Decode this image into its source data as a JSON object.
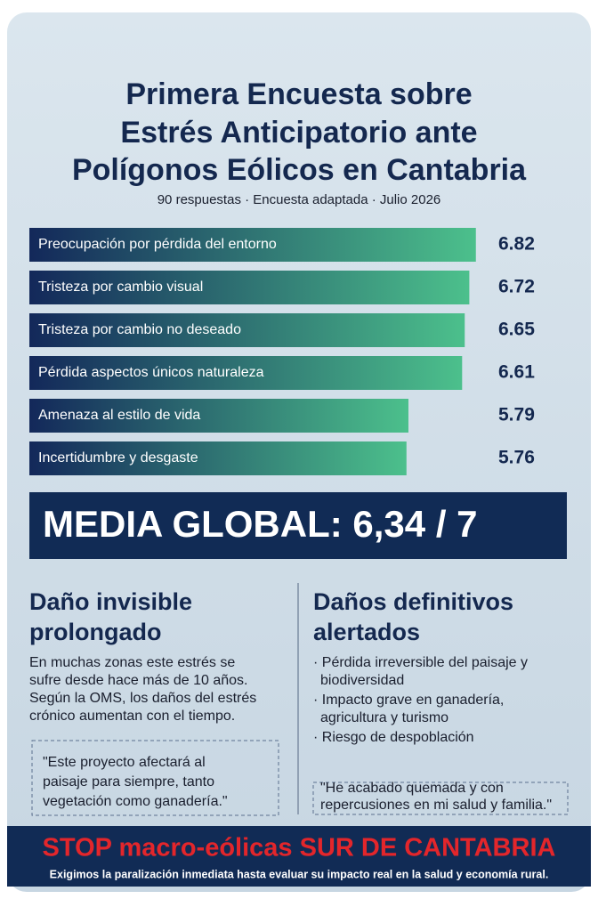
{
  "header": {
    "title_lines": [
      "Primera Encuesta sobre",
      "Estrés Anticipatorio ante",
      "Polígonos Eólicos en Cantabria"
    ],
    "subtitle": "90 respuestas · Encuesta adaptada · Julio 2026"
  },
  "chart_data": {
    "type": "bar",
    "orientation": "horizontal",
    "categories": [
      "Preocupación por pérdida del entorno",
      "Tristeza por cambio visual",
      "Tristeza por cambio no deseado",
      "Pérdida aspectos únicos naturaleza",
      "Amenaza al estilo de vida",
      "Incertidumbre y desgaste"
    ],
    "values": [
      6.82,
      6.72,
      6.65,
      6.61,
      5.79,
      5.76
    ],
    "xlim": [
      0,
      7
    ],
    "gradient": [
      "#13285a",
      "#4cc08c"
    ]
  },
  "summary": "MEDIA GLOBAL: 6,34 / 7",
  "left": {
    "heading_lines": [
      "Daño invisible",
      "prolongado"
    ],
    "text_lines": [
      "En muchas zonas este estrés se",
      "sufre desde hace más de 10 años.",
      "Según la OMS, los daños del estrés",
      "crónico aumentan con el tiempo."
    ],
    "quote_lines": [
      "\"Este proyecto afectará al",
      "paisaje para siempre, tanto",
      "vegetación como ganadería.\""
    ]
  },
  "right": {
    "heading_lines": [
      "Daños definitivos",
      "alertados"
    ],
    "bullet_lines": [
      "· Pérdida irreversible del paisaje y",
      "biodiversidad",
      "· Impacto grave en ganadería,",
      "agricultura y turismo",
      "· Riesgo de despoblación"
    ],
    "quote_lines": [
      "\"He acabado quemada y con",
      "repercusiones en mi salud y familia.\""
    ]
  },
  "footer": {
    "headline": "STOP macro-eólicas SUR DE CANTABRIA",
    "text": "Exigimos la paralización inmediata hasta evaluar su impacto real en la salud y economía rural."
  }
}
